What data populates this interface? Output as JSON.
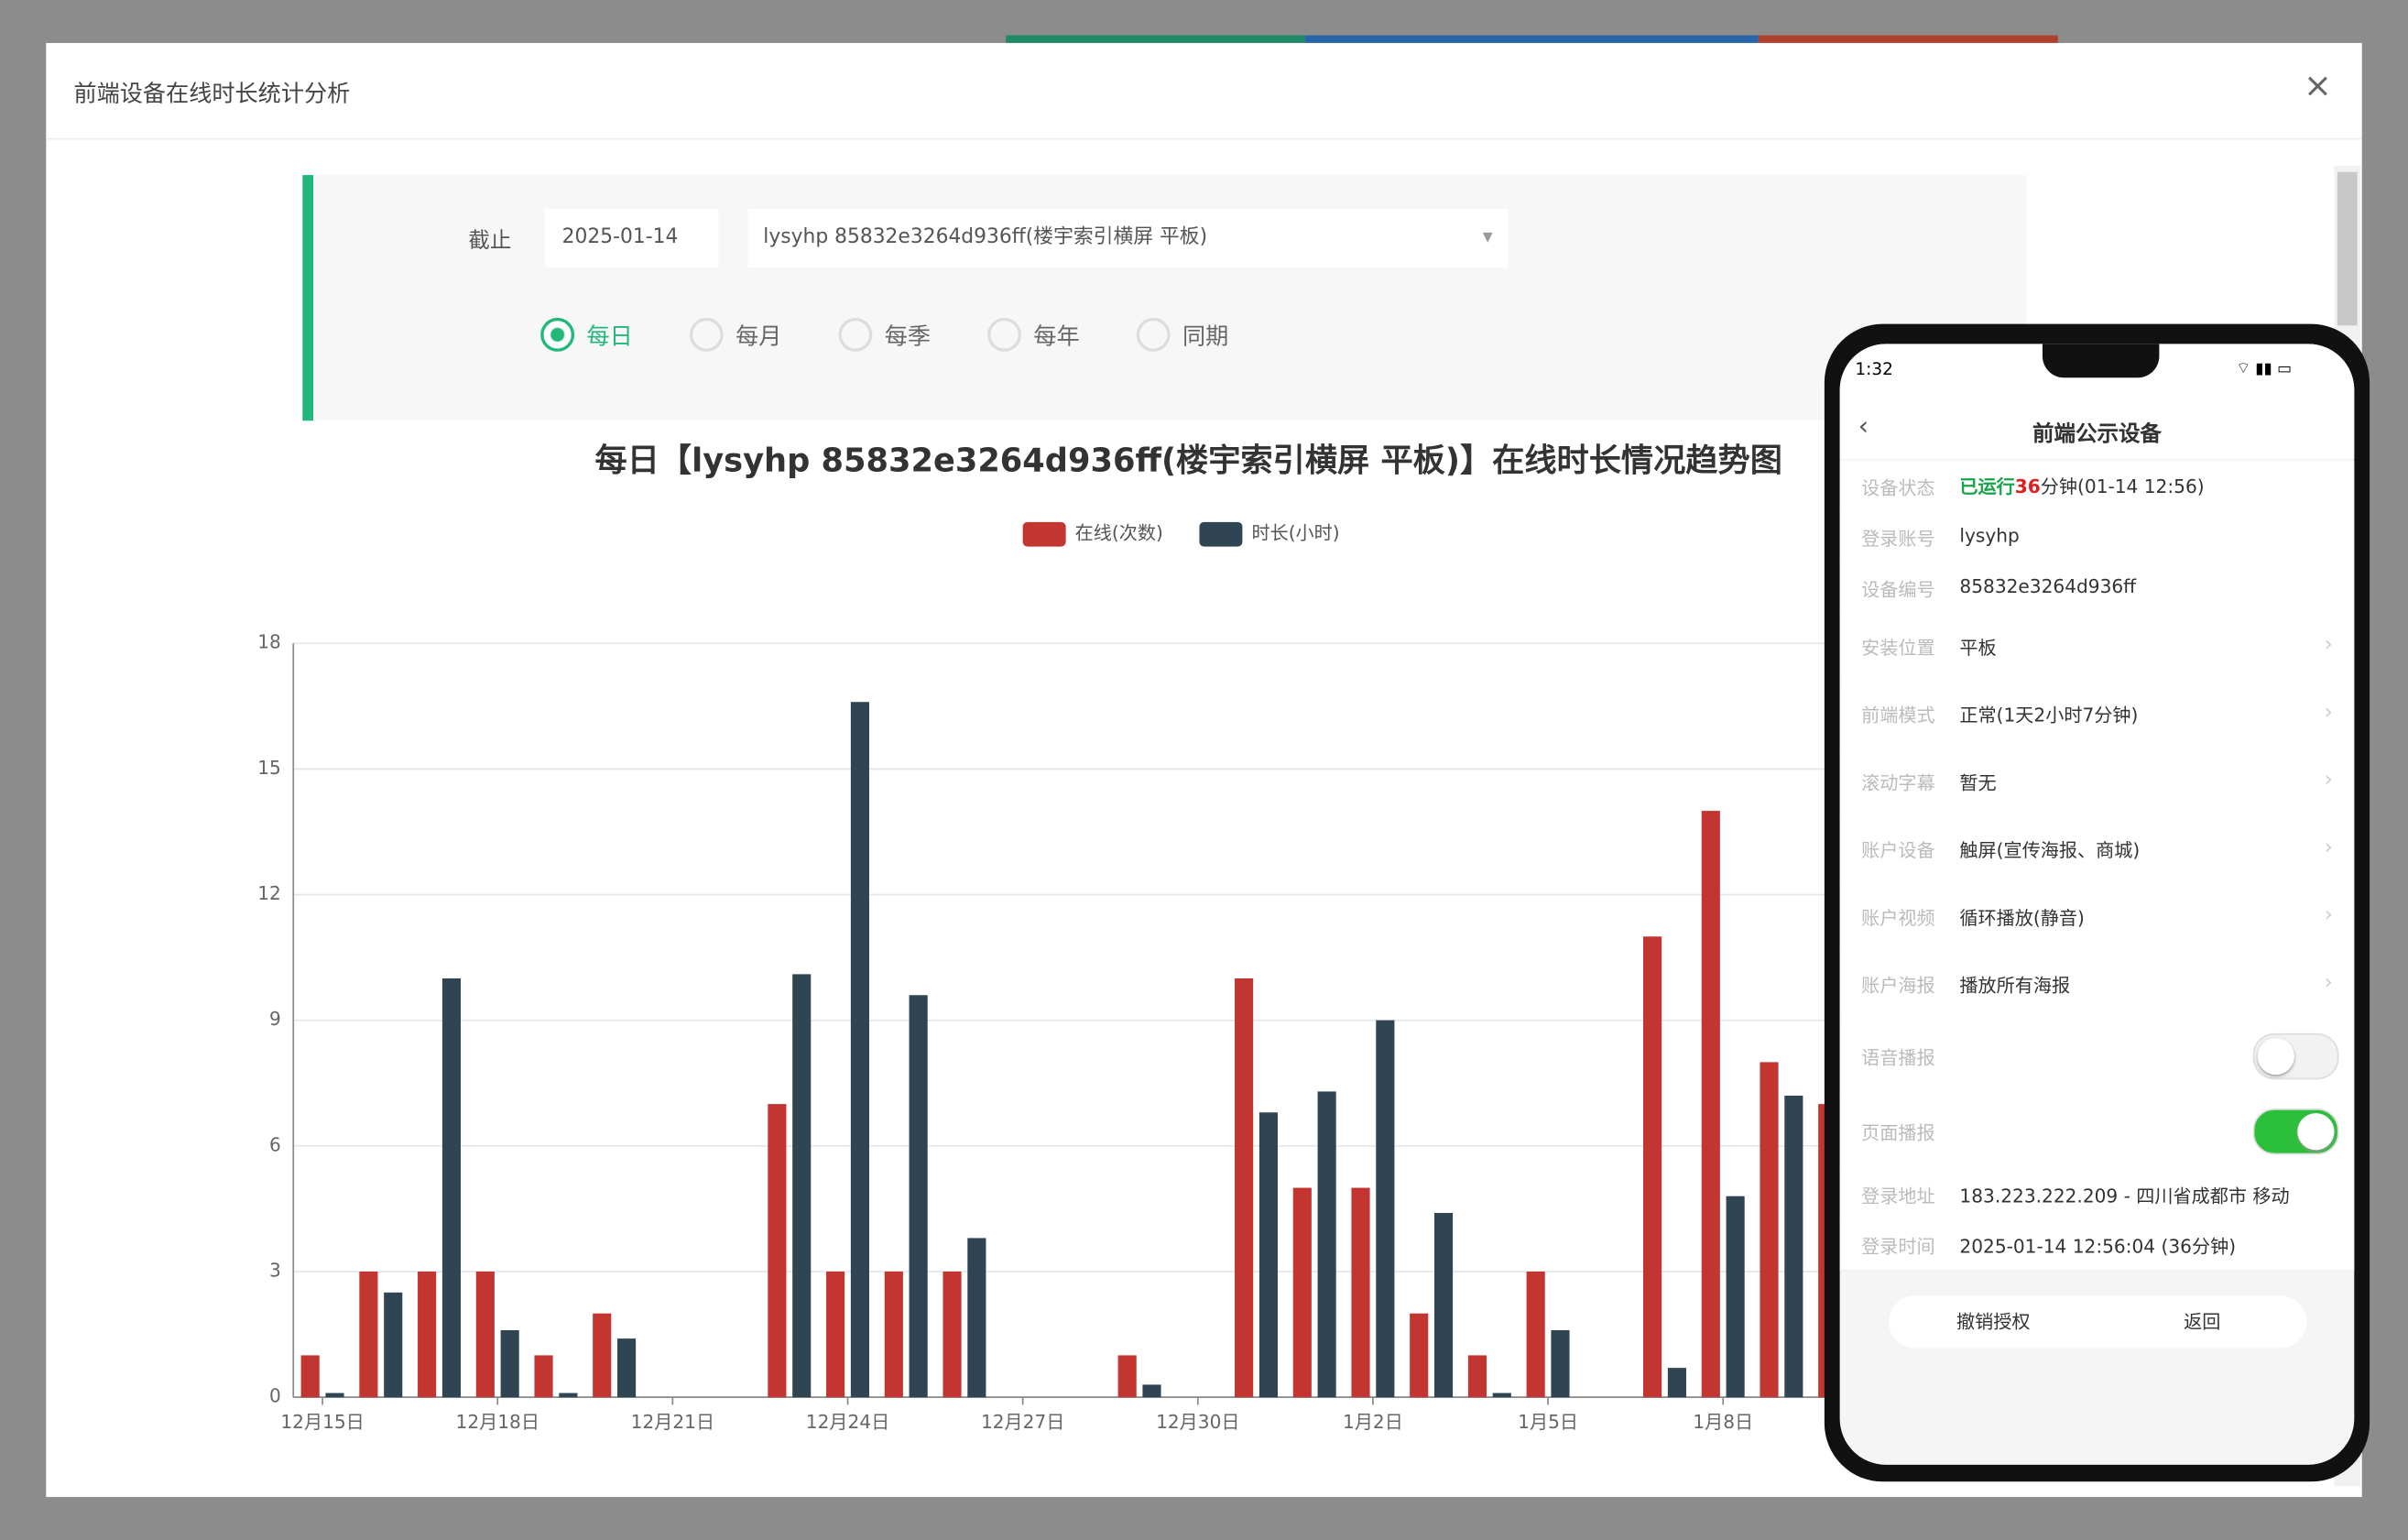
{
  "modal": {
    "title": "前端设备在线时长统计分析"
  },
  "form": {
    "label": "截止",
    "date": "2025-01-14",
    "device": "lysyhp 85832e3264d936ff(楼宇索引横屏 平板)",
    "radios": [
      "每日",
      "每月",
      "每季",
      "每年",
      "同期"
    ]
  },
  "chart_data": {
    "type": "bar",
    "title": "每日【lysyhp 85832e3264d936ff(楼宇索引横屏 平板)】在线时长情况趋势图",
    "categories": [
      "12月15日",
      null,
      null,
      "12月18日",
      null,
      null,
      "12月21日",
      null,
      null,
      "12月24日",
      null,
      null,
      "12月27日",
      null,
      null,
      "12月30日",
      null,
      null,
      "1月2日",
      null,
      null,
      "1月5日",
      null,
      null,
      "1月8日",
      null,
      null,
      null,
      null,
      null
    ],
    "series": [
      {
        "name": "在线(次数)",
        "color": "#c23531",
        "values": [
          1,
          3,
          3,
          3,
          1,
          2,
          0,
          0,
          7,
          3,
          3,
          3,
          0,
          0,
          1,
          0,
          10,
          5,
          5,
          2,
          1,
          3,
          0,
          11,
          14,
          8,
          7,
          null,
          null,
          null
        ]
      },
      {
        "name": "时长(小时)",
        "color": "#2f4554",
        "values": [
          0.1,
          2.5,
          10,
          1.6,
          0.1,
          1.4,
          0,
          0,
          10.1,
          16.6,
          9.6,
          3.8,
          0,
          0,
          0.3,
          0,
          6.8,
          7.3,
          9,
          4.4,
          0.1,
          1.6,
          0,
          0.7,
          4.8,
          7.2,
          null,
          null,
          null,
          null
        ]
      }
    ],
    "ylim": [
      0,
      18
    ],
    "yticks": [
      0,
      3,
      6,
      9,
      12,
      15,
      18
    ],
    "grid": true,
    "legend": "top"
  },
  "phone": {
    "time": "1:32",
    "title": "前端公示设备",
    "status": {
      "label": "设备状态",
      "parts": [
        "已运行",
        "36",
        "分钟(01-14 12:56)"
      ]
    },
    "rows": [
      {
        "label": "登录账号",
        "value": "lysyhp"
      },
      {
        "label": "设备编号",
        "value": "85832e3264d936ff"
      },
      {
        "label": "安装位置",
        "value": "平板"
      },
      {
        "label": "前端模式",
        "value": "正常(1天2小时7分钟)"
      },
      {
        "label": "滚动字幕",
        "value": "暂无"
      },
      {
        "label": "账户设备",
        "value": "触屏(宣传海报、商城)"
      },
      {
        "label": "账户视频",
        "value": "循环播放(静音)"
      },
      {
        "label": "账户海报",
        "value": "播放所有海报"
      }
    ],
    "toggles": [
      {
        "label": "语音播报"
      },
      {
        "label": "页面播报"
      }
    ],
    "info": [
      {
        "label": "登录地址",
        "value": "183.223.222.209 - 四川省成都市 移动"
      },
      {
        "label": "登录时间",
        "value": "2025-01-14 12:56:04 (36分钟)"
      }
    ],
    "buttons": [
      "撤销授权",
      "返回"
    ]
  }
}
